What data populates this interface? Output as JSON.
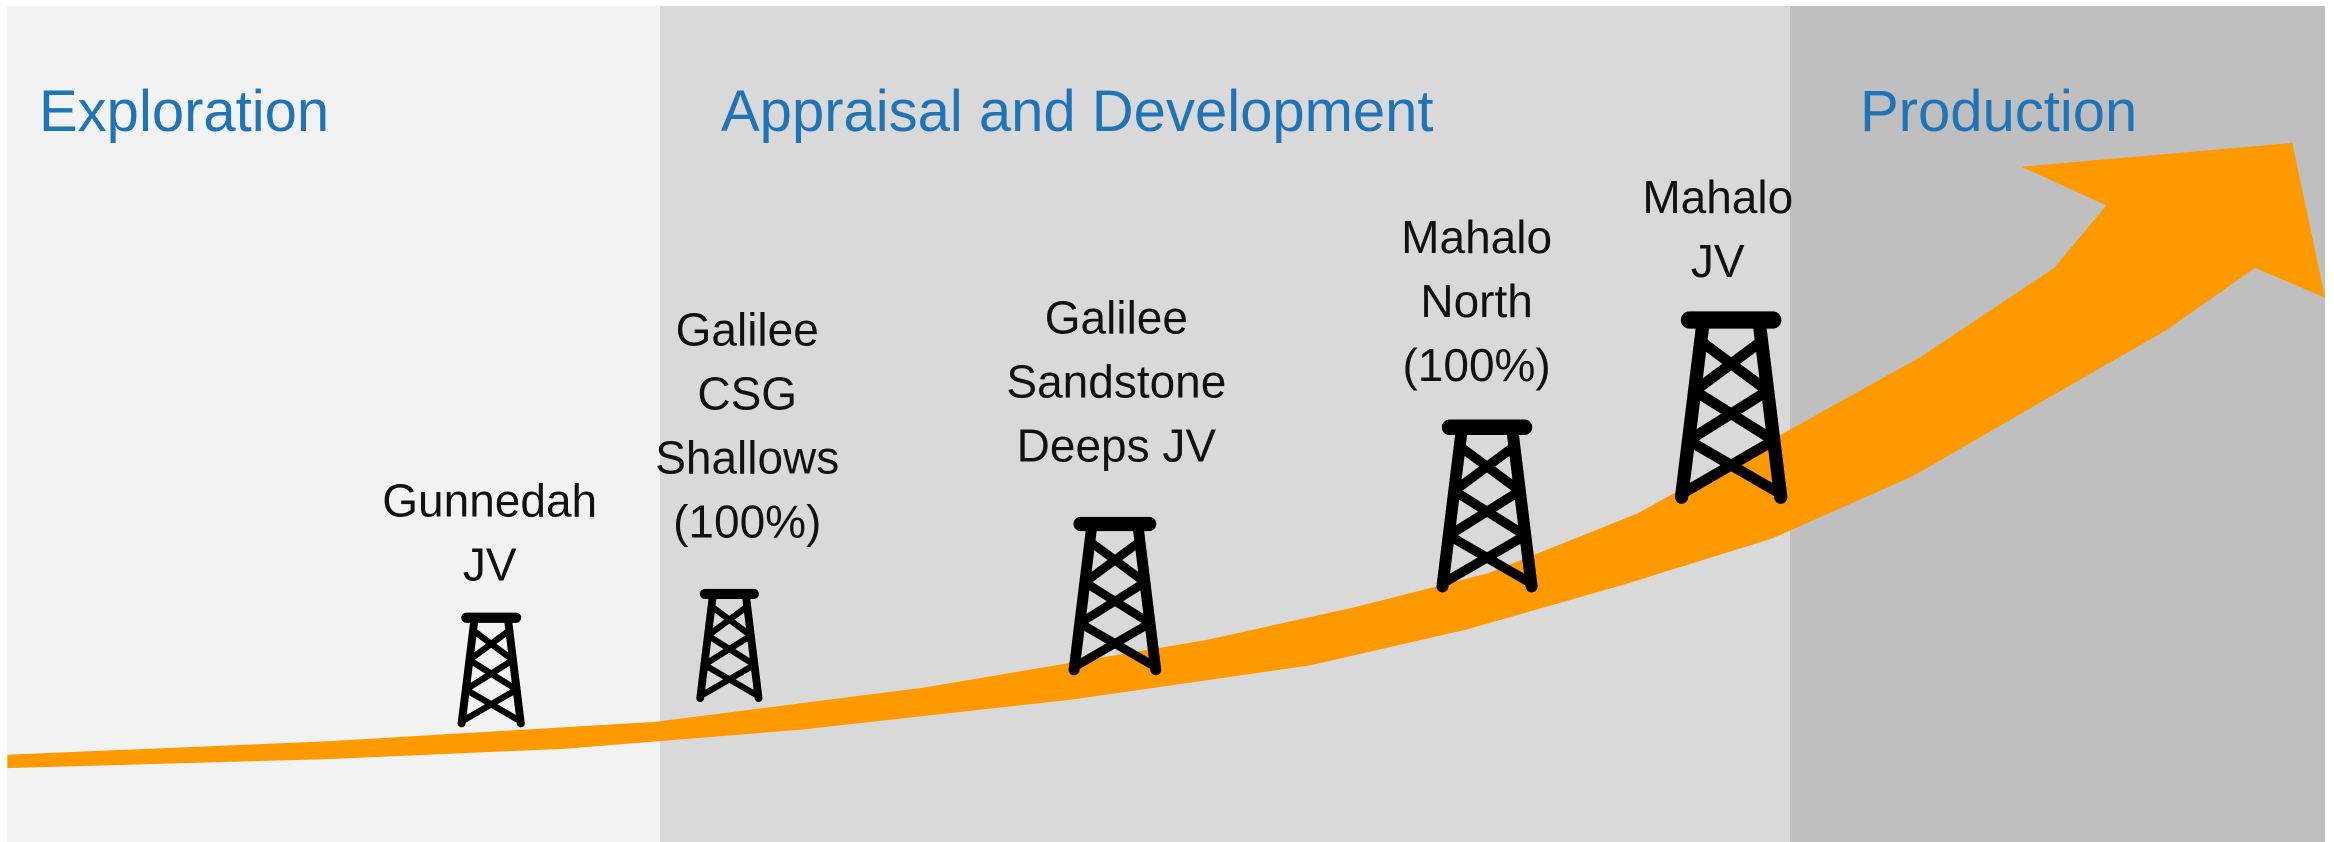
{
  "stages": [
    {
      "title": "Exploration"
    },
    {
      "title": "Appraisal and Development"
    },
    {
      "title": "Production"
    }
  ],
  "projects": [
    {
      "lines": [
        "Gunnedah",
        "JV"
      ]
    },
    {
      "lines": [
        "Galilee",
        "CSG",
        "Shallows",
        "(100%)"
      ]
    },
    {
      "lines": [
        "Galilee",
        "Sandstone",
        "Deeps JV"
      ]
    },
    {
      "lines": [
        "Mahalo",
        "North",
        "(100%)"
      ]
    },
    {
      "lines": [
        "Mahalo",
        "JV"
      ]
    }
  ]
}
